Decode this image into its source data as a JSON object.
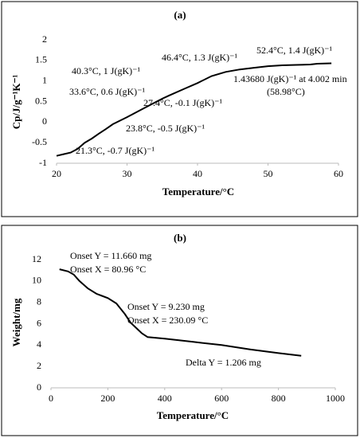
{
  "chart_data": [
    {
      "type": "line",
      "title": "(a)",
      "x_label": "Temperature/°C",
      "y_label": "Cp/J/g⁻¹K⁻¹",
      "color": "#000000",
      "x": [
        20,
        21,
        22,
        23,
        24,
        25,
        26,
        27,
        28,
        30,
        32,
        34,
        35,
        36,
        38,
        40,
        42,
        44,
        46,
        48,
        50,
        52,
        54,
        56,
        57,
        59
      ],
      "values": [
        -0.82,
        -0.78,
        -0.74,
        -0.65,
        -0.5,
        -0.4,
        -0.28,
        -0.17,
        -0.05,
        0.12,
        0.3,
        0.48,
        0.57,
        0.65,
        0.8,
        0.95,
        1.12,
        1.22,
        1.28,
        1.32,
        1.36,
        1.38,
        1.39,
        1.4,
        1.42,
        1.43
      ],
      "xlim": [
        20,
        60
      ],
      "xticks": [
        20,
        30,
        40,
        50,
        60
      ],
      "ylim": [
        -1,
        2
      ],
      "yticks": [
        -1,
        -0.5,
        0,
        0.5,
        1,
        1.5,
        2
      ],
      "annotations": [
        "52.4°C, 1.4 J(gK)⁻¹",
        "46.4°C, 1.3 J(gK)⁻¹",
        "40.3°C, 1 J(gK)⁻¹",
        "1.43680 J(gK)⁻¹ at 4.002 min",
        "(58.98°C)",
        "33.6°C, 0.6 J(gK)⁻¹",
        "27.4°C, -0.1 J(gK)⁻¹",
        "23.8°C, -0.5 J(gK)⁻¹",
        "21.3°C, -0.7 J(gK)⁻¹"
      ]
    },
    {
      "type": "line",
      "title": "(b)",
      "x_label": "Temperature/°C",
      "y_label": "Weight/mg",
      "color": "#000000",
      "x": [
        30,
        60,
        80,
        100,
        130,
        160,
        200,
        230,
        260,
        280,
        300,
        320,
        340,
        400,
        500,
        600,
        700,
        800,
        880
      ],
      "values": [
        11.1,
        10.9,
        10.6,
        10.0,
        9.3,
        8.8,
        8.4,
        7.9,
        6.9,
        6.1,
        5.6,
        5.1,
        4.75,
        4.6,
        4.3,
        4.0,
        3.6,
        3.25,
        3.0
      ],
      "xlim": [
        0,
        1000
      ],
      "xticks": [
        0,
        200,
        400,
        600,
        800,
        1000
      ],
      "ylim": [
        0,
        12
      ],
      "yticks": [
        0,
        2,
        4,
        6,
        8,
        10,
        12
      ],
      "annotations": [
        "Onset Y = 11.660 mg",
        "Onset X = 80.96 °C",
        "Onset Y = 9.230 mg",
        "Onset X = 230.09 °C",
        "Delta Y = 1.206 mg"
      ]
    }
  ]
}
